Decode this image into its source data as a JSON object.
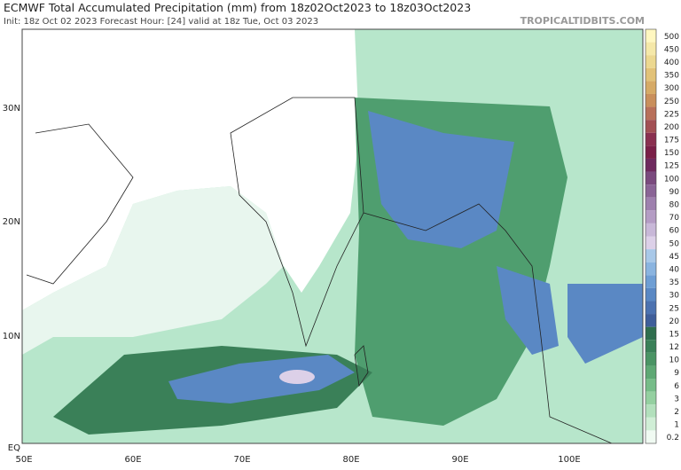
{
  "header": {
    "title": "ECMWF Total Accumulated Precipitation (mm) from 18z02Oct2023 to 18z03Oct2023",
    "subtitle": "Init: 18z Oct 02 2023   Forecast Hour: [24]   valid at 18z Tue, Oct 03 2023",
    "watermark": "TROPICALTIDBITS.COM"
  },
  "map": {
    "lat_labels": [
      "30N",
      "20N",
      "10N",
      "EQ"
    ],
    "lon_labels": [
      "50E",
      "60E",
      "70E",
      "80E",
      "90E",
      "100E"
    ]
  },
  "colorbar": {
    "labels": [
      "500",
      "450",
      "400",
      "350",
      "300",
      "250",
      "225",
      "200",
      "175",
      "150",
      "125",
      "100",
      "90",
      "80",
      "70",
      "60",
      "50",
      "45",
      "40",
      "35",
      "30",
      "25",
      "20",
      "15",
      "12",
      "10",
      "9",
      "6",
      "3",
      "2",
      "1",
      "0.2"
    ],
    "colors": [
      "#fff7c0",
      "#f5e8a8",
      "#ecd890",
      "#e2c278",
      "#d6aa66",
      "#c98f5c",
      "#b8705a",
      "#a25054",
      "#8a3050",
      "#7a2048",
      "#6e2a5e",
      "#7a4a7e",
      "#8a6496",
      "#9e80ae",
      "#b49cc4",
      "#c8b8d8",
      "#dcd0e8",
      "#a8c8e8",
      "#8ab4e0",
      "#6e9ed4",
      "#5a88c4",
      "#4c72b0",
      "#3f5e9a",
      "#2f6e4e",
      "#3a8058",
      "#4a9464",
      "#5ea874",
      "#76bc88",
      "#94d0a0",
      "#b2e0bc",
      "#d0eed6",
      "#f0faf2"
    ]
  }
}
